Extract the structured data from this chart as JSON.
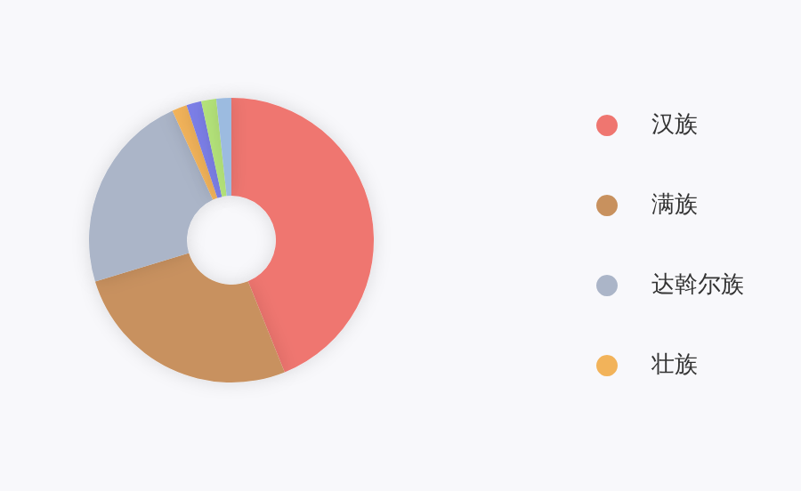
{
  "chart_data": {
    "type": "donut",
    "categories": [
      "汉族",
      "满族",
      "达斡尔族",
      "壮族",
      null,
      null,
      null
    ],
    "values": [
      43.9,
      26.4,
      22.9,
      1.7,
      1.7,
      1.7,
      1.7
    ],
    "colors": [
      "#ef7670",
      "#c8915e",
      "#abb5c8",
      "#f2b35a",
      "#7b7fe8",
      "#b4e37a",
      "#9cbbe0"
    ],
    "legend": "right"
  }
}
